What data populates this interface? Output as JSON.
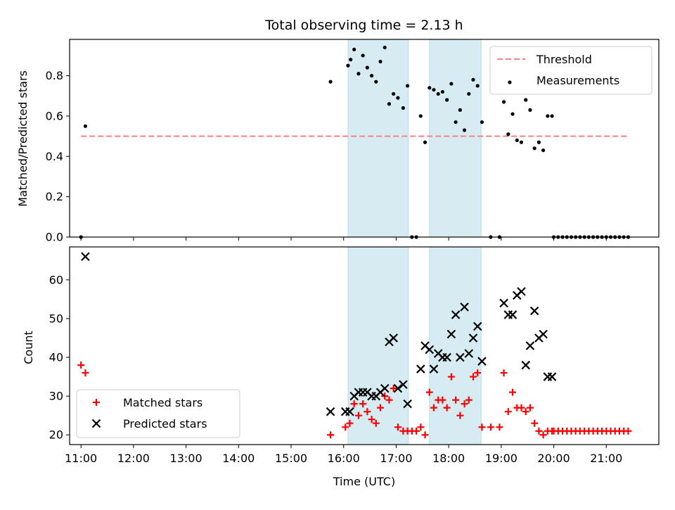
{
  "chart_data": [
    {
      "type": "scatter",
      "title": "Total observing time = 2.13 h",
      "ylabel": "Matched/Predicted stars",
      "xlabel": "",
      "xlim": [
        "10:47",
        "22:00"
      ],
      "ylim": [
        0,
        0.98
      ],
      "yticks": [
        "0.0",
        "0.2",
        "0.4",
        "0.6",
        "0.8"
      ],
      "xticks": [
        "11:00",
        "12:00",
        "13:00",
        "14:00",
        "15:00",
        "16:00",
        "17:00",
        "18:00",
        "19:00",
        "20:00",
        "21:00"
      ],
      "xtick_labels_visible": false,
      "grid": false,
      "legend_position": "top-right",
      "shaded_intervals": [
        [
          "16:05",
          "17:14"
        ],
        [
          "17:38",
          "18:37"
        ]
      ],
      "shade_color": "#add8e6",
      "series": [
        {
          "name": "Threshold",
          "kind": "dashed-line",
          "color": "#ff7f7f",
          "points": [
            [
              "11:00",
              0.5
            ],
            [
              "21:25",
              0.5
            ]
          ]
        },
        {
          "name": "Measurements",
          "kind": "dot",
          "color": "#000000",
          "points": [
            [
              "11:00",
              0.0
            ],
            [
              "11:05",
              0.55
            ],
            [
              "15:45",
              0.77
            ],
            [
              "16:05",
              0.85
            ],
            [
              "16:08",
              0.88
            ],
            [
              "16:12",
              0.93
            ],
            [
              "16:17",
              0.81
            ],
            [
              "16:22",
              0.9
            ],
            [
              "16:27",
              0.84
            ],
            [
              "16:32",
              0.8
            ],
            [
              "16:37",
              0.77
            ],
            [
              "16:42",
              0.87
            ],
            [
              "16:47",
              0.94
            ],
            [
              "16:52",
              0.66
            ],
            [
              "16:57",
              0.71
            ],
            [
              "17:02",
              0.69
            ],
            [
              "17:08",
              0.64
            ],
            [
              "17:13",
              0.75
            ],
            [
              "17:18",
              0.0
            ],
            [
              "17:23",
              0.0
            ],
            [
              "17:28",
              0.6
            ],
            [
              "17:33",
              0.47
            ],
            [
              "17:38",
              0.74
            ],
            [
              "17:43",
              0.73
            ],
            [
              "17:48",
              0.71
            ],
            [
              "17:53",
              0.72
            ],
            [
              "17:58",
              0.68
            ],
            [
              "18:03",
              0.76
            ],
            [
              "18:08",
              0.57
            ],
            [
              "18:13",
              0.63
            ],
            [
              "18:18",
              0.53
            ],
            [
              "18:23",
              0.71
            ],
            [
              "18:28",
              0.78
            ],
            [
              "18:33",
              0.75
            ],
            [
              "18:38",
              0.57
            ],
            [
              "18:48",
              0.0
            ],
            [
              "18:58",
              0.0
            ],
            [
              "19:03",
              0.67
            ],
            [
              "19:08",
              0.51
            ],
            [
              "19:13",
              0.61
            ],
            [
              "19:18",
              0.48
            ],
            [
              "19:23",
              0.47
            ],
            [
              "19:28",
              0.68
            ],
            [
              "19:33",
              0.63
            ],
            [
              "19:38",
              0.44
            ],
            [
              "19:43",
              0.47
            ],
            [
              "19:48",
              0.43
            ],
            [
              "19:53",
              0.6
            ],
            [
              "19:58",
              0.6
            ],
            [
              "20:00",
              0.0
            ],
            [
              "20:05",
              0.0
            ],
            [
              "20:10",
              0.0
            ],
            [
              "20:15",
              0.0
            ],
            [
              "20:20",
              0.0
            ],
            [
              "20:25",
              0.0
            ],
            [
              "20:30",
              0.0
            ],
            [
              "20:35",
              0.0
            ],
            [
              "20:40",
              0.0
            ],
            [
              "20:45",
              0.0
            ],
            [
              "20:50",
              0.0
            ],
            [
              "20:55",
              0.0
            ],
            [
              "21:00",
              0.0
            ],
            [
              "21:05",
              0.0
            ],
            [
              "21:10",
              0.0
            ],
            [
              "21:15",
              0.0
            ],
            [
              "21:20",
              0.0
            ],
            [
              "21:25",
              0.0
            ]
          ]
        }
      ]
    },
    {
      "type": "scatter",
      "title": "",
      "xlabel": "Time (UTC)",
      "ylabel": "Count",
      "xlim": [
        "10:47",
        "22:00"
      ],
      "ylim": [
        17.5,
        68.5
      ],
      "yticks": [
        "20",
        "30",
        "40",
        "50",
        "60"
      ],
      "xticks": [
        "11:00",
        "12:00",
        "13:00",
        "14:00",
        "15:00",
        "16:00",
        "17:00",
        "18:00",
        "19:00",
        "20:00",
        "21:00"
      ],
      "grid": false,
      "legend_position": "bottom-left",
      "shaded_intervals": [
        [
          "16:05",
          "17:14"
        ],
        [
          "17:38",
          "18:37"
        ]
      ],
      "shade_color": "#add8e6",
      "series": [
        {
          "name": "Matched stars",
          "kind": "plus",
          "color": "#ff0000",
          "points": [
            [
              "11:00",
              38
            ],
            [
              "11:05",
              36
            ],
            [
              "15:45",
              20
            ],
            [
              "16:02",
              22
            ],
            [
              "16:07",
              23
            ],
            [
              "16:12",
              28
            ],
            [
              "16:17",
              25
            ],
            [
              "16:22",
              28
            ],
            [
              "16:27",
              26
            ],
            [
              "16:32",
              24
            ],
            [
              "16:37",
              23
            ],
            [
              "16:42",
              27
            ],
            [
              "16:47",
              30
            ],
            [
              "16:52",
              29
            ],
            [
              "16:57",
              32
            ],
            [
              "17:02",
              22
            ],
            [
              "17:08",
              21
            ],
            [
              "17:13",
              21
            ],
            [
              "17:18",
              21
            ],
            [
              "17:23",
              21
            ],
            [
              "17:28",
              22
            ],
            [
              "17:33",
              20
            ],
            [
              "17:38",
              31
            ],
            [
              "17:43",
              27
            ],
            [
              "17:48",
              29
            ],
            [
              "17:53",
              29
            ],
            [
              "17:58",
              27
            ],
            [
              "18:03",
              35
            ],
            [
              "18:08",
              29
            ],
            [
              "18:13",
              25
            ],
            [
              "18:18",
              28
            ],
            [
              "18:23",
              29
            ],
            [
              "18:28",
              35
            ],
            [
              "18:33",
              36
            ],
            [
              "18:38",
              22
            ],
            [
              "18:48",
              22
            ],
            [
              "18:58",
              22
            ],
            [
              "19:03",
              36
            ],
            [
              "19:08",
              26
            ],
            [
              "19:13",
              31
            ],
            [
              "19:18",
              27
            ],
            [
              "19:23",
              27
            ],
            [
              "19:28",
              26
            ],
            [
              "19:33",
              27
            ],
            [
              "19:38",
              23
            ],
            [
              "19:43",
              21
            ],
            [
              "19:48",
              20
            ],
            [
              "19:53",
              21
            ],
            [
              "19:58",
              21
            ],
            [
              "20:00",
              21
            ],
            [
              "20:05",
              21
            ],
            [
              "20:10",
              21
            ],
            [
              "20:15",
              21
            ],
            [
              "20:20",
              21
            ],
            [
              "20:25",
              21
            ],
            [
              "20:30",
              21
            ],
            [
              "20:35",
              21
            ],
            [
              "20:40",
              21
            ],
            [
              "20:45",
              21
            ],
            [
              "20:50",
              21
            ],
            [
              "20:55",
              21
            ],
            [
              "21:00",
              21
            ],
            [
              "21:05",
              21
            ],
            [
              "21:10",
              21
            ],
            [
              "21:15",
              21
            ],
            [
              "21:20",
              21
            ],
            [
              "21:25",
              21
            ]
          ]
        },
        {
          "name": "Predicted stars",
          "kind": "cross",
          "color": "#000000",
          "points": [
            [
              "11:05",
              66
            ],
            [
              "15:45",
              26
            ],
            [
              "16:02",
              26
            ],
            [
              "16:07",
              26
            ],
            [
              "16:12",
              30
            ],
            [
              "16:17",
              31
            ],
            [
              "16:22",
              31
            ],
            [
              "16:27",
              31
            ],
            [
              "16:32",
              30
            ],
            [
              "16:37",
              30
            ],
            [
              "16:42",
              31
            ],
            [
              "16:47",
              32
            ],
            [
              "16:52",
              44
            ],
            [
              "16:57",
              45
            ],
            [
              "17:02",
              32
            ],
            [
              "17:08",
              33
            ],
            [
              "17:13",
              28
            ],
            [
              "17:28",
              37
            ],
            [
              "17:33",
              43
            ],
            [
              "17:38",
              42
            ],
            [
              "17:43",
              37
            ],
            [
              "17:48",
              41
            ],
            [
              "17:53",
              40
            ],
            [
              "17:58",
              40
            ],
            [
              "18:03",
              46
            ],
            [
              "18:08",
              51
            ],
            [
              "18:13",
              40
            ],
            [
              "18:18",
              53
            ],
            [
              "18:23",
              41
            ],
            [
              "18:28",
              45
            ],
            [
              "18:33",
              48
            ],
            [
              "18:38",
              39
            ],
            [
              "19:03",
              54
            ],
            [
              "19:08",
              51
            ],
            [
              "19:13",
              51
            ],
            [
              "19:18",
              56
            ],
            [
              "19:23",
              57
            ],
            [
              "19:28",
              38
            ],
            [
              "19:33",
              43
            ],
            [
              "19:38",
              52
            ],
            [
              "19:43",
              45
            ],
            [
              "19:48",
              46
            ],
            [
              "19:53",
              35
            ],
            [
              "19:58",
              35
            ]
          ]
        }
      ]
    }
  ]
}
